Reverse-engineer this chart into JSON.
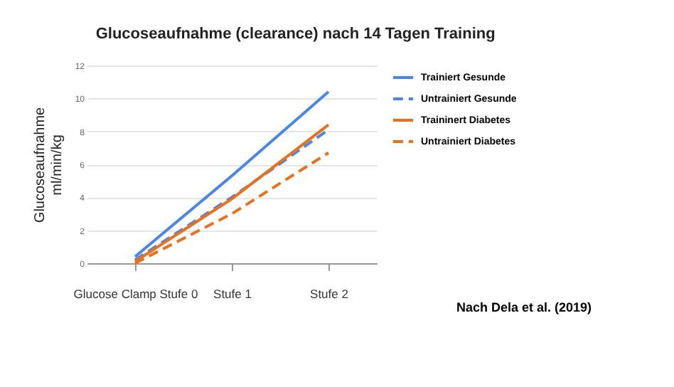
{
  "chart_data": {
    "type": "line",
    "title": "Glucoseaufnahme (clearance) nach 14 Tagen Training",
    "ylabel": "Glucoseaufnahme ml/min/kg",
    "categories": [
      "Glucose Clamp Stufe 0",
      "Stufe 1",
      "Stufe 2"
    ],
    "series": [
      {
        "name": "Trainiert Gesunde",
        "color": "#4a86e8",
        "values": [
          0.4,
          5.3,
          10.4
        ]
      },
      {
        "name": "Untrainiert Gesunde",
        "color": "#4a86e8",
        "line_style": "dashed",
        "values": [
          0.2,
          4.0,
          8.1
        ]
      },
      {
        "name": "Traininert Diabetes",
        "color": "#e8711a",
        "values": [
          0.1,
          3.9,
          8.4
        ]
      },
      {
        "name": "Untrainiert Diabetes",
        "color": "#e8711a",
        "line_style": "dashed",
        "values": [
          0,
          3.0,
          6.7
        ]
      }
    ],
    "ylim": [
      0,
      12
    ],
    "yticks": [
      0,
      2,
      4,
      6,
      8,
      10,
      12
    ],
    "grid": "y",
    "legend": "top right",
    "line_style": "solid",
    "marker": "none",
    "annotations": [
      "Nach Dela et al. (2019)"
    ]
  }
}
